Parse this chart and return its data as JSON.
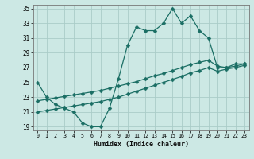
{
  "xlabel": "Humidex (Indice chaleur)",
  "bg_color": "#cce8e4",
  "grid_color": "#aaccc8",
  "line_color": "#1a6e64",
  "xlim": [
    -0.5,
    23.5
  ],
  "ylim": [
    18.5,
    35.5
  ],
  "yticks": [
    19,
    21,
    23,
    25,
    27,
    29,
    31,
    33,
    35
  ],
  "xticks": [
    0,
    1,
    2,
    3,
    4,
    5,
    6,
    7,
    8,
    9,
    10,
    11,
    12,
    13,
    14,
    15,
    16,
    17,
    18,
    19,
    20,
    21,
    22,
    23
  ],
  "series1_x": [
    0,
    1,
    2,
    3,
    4,
    5,
    6,
    7,
    8,
    9,
    10,
    11,
    12,
    13,
    14,
    15,
    16,
    17,
    18,
    19,
    20,
    21,
    22,
    23
  ],
  "series1_y": [
    25,
    23,
    22,
    21.5,
    21,
    19.5,
    19,
    19,
    21.5,
    25.5,
    30,
    32.5,
    32,
    32,
    33,
    35,
    33,
    34,
    32,
    31,
    27,
    27,
    27.5,
    27.5
  ],
  "series2_x": [
    0,
    1,
    2,
    3,
    4,
    5,
    6,
    7,
    8,
    9,
    10,
    11,
    12,
    13,
    14,
    15,
    16,
    17,
    18,
    19,
    20,
    21,
    22,
    23
  ],
  "series2_y": [
    22.5,
    22.7,
    22.9,
    23.1,
    23.3,
    23.5,
    23.7,
    23.9,
    24.2,
    24.5,
    24.8,
    25.1,
    25.5,
    25.9,
    26.2,
    26.6,
    27.0,
    27.4,
    27.7,
    28.0,
    27.2,
    27.0,
    27.2,
    27.5
  ],
  "series3_x": [
    0,
    1,
    2,
    3,
    4,
    5,
    6,
    7,
    8,
    9,
    10,
    11,
    12,
    13,
    14,
    15,
    16,
    17,
    18,
    19,
    20,
    21,
    22,
    23
  ],
  "series3_y": [
    21.0,
    21.2,
    21.4,
    21.6,
    21.8,
    22.0,
    22.2,
    22.4,
    22.7,
    23.0,
    23.4,
    23.8,
    24.2,
    24.6,
    25.0,
    25.4,
    25.8,
    26.3,
    26.6,
    27.0,
    26.5,
    26.8,
    27.0,
    27.3
  ]
}
